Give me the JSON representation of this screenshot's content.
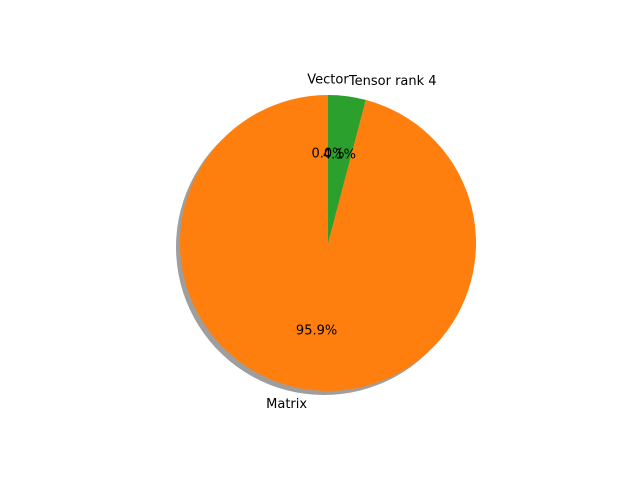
{
  "chart_data": {
    "type": "pie",
    "labels": [
      "Vector",
      "Matrix",
      "Tensor rank 4"
    ],
    "values": [
      0.0,
      95.9,
      4.1
    ],
    "value_labels": [
      "0.0%",
      "95.9%",
      "4.1%"
    ],
    "colors": [
      "#1f77b4",
      "#ff7f0e",
      "#2ca02c"
    ],
    "start_angle_deg": 90,
    "direction": "counterclockwise",
    "shadow": true,
    "title": ""
  }
}
